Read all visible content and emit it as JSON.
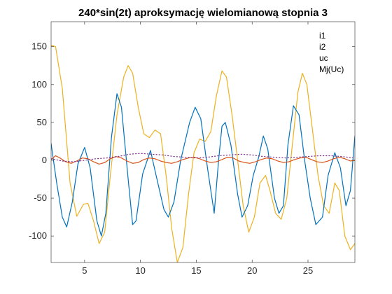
{
  "chart_data": {
    "type": "line",
    "title": "240*sin(2t) aproksymację wielomianową stopnia 3",
    "xlabel": "",
    "ylabel": "",
    "xlim": [
      2,
      29.2
    ],
    "ylim": [
      -135,
      183
    ],
    "xticks": [
      5,
      10,
      15,
      20,
      25
    ],
    "xtick_labels": [
      "5",
      "10",
      "15",
      "20",
      "25"
    ],
    "yticks": [
      -100,
      -50,
      0,
      50,
      100,
      150
    ],
    "ytick_labels": [
      "-100",
      "-50",
      "0",
      "50",
      "100",
      "150"
    ],
    "grid": false,
    "legend": {
      "placement": "top-right",
      "boxed": false
    },
    "series": [
      {
        "name": "i1",
        "color": "#EDB120",
        "style": "solid",
        "points": [
          [
            2.0,
            152
          ],
          [
            2.4,
            150
          ],
          [
            3.0,
            95
          ],
          [
            3.7,
            -30
          ],
          [
            4.3,
            -74
          ],
          [
            4.9,
            -58
          ],
          [
            5.3,
            -57
          ],
          [
            5.8,
            -80
          ],
          [
            6.3,
            -110
          ],
          [
            6.8,
            -95
          ],
          [
            7.3,
            -20
          ],
          [
            7.9,
            60
          ],
          [
            8.5,
            110
          ],
          [
            8.9,
            125
          ],
          [
            9.3,
            115
          ],
          [
            9.8,
            70
          ],
          [
            10.3,
            35
          ],
          [
            10.8,
            30
          ],
          [
            11.3,
            40
          ],
          [
            11.8,
            35
          ],
          [
            12.3,
            -20
          ],
          [
            12.8,
            -90
          ],
          [
            13.3,
            -135
          ],
          [
            13.8,
            -115
          ],
          [
            14.3,
            -45
          ],
          [
            14.8,
            10
          ],
          [
            15.3,
            28
          ],
          [
            15.8,
            25
          ],
          [
            16.3,
            38
          ],
          [
            16.8,
            85
          ],
          [
            17.3,
            118
          ],
          [
            17.7,
            110
          ],
          [
            18.2,
            60
          ],
          [
            18.7,
            0
          ],
          [
            19.2,
            -60
          ],
          [
            19.7,
            -95
          ],
          [
            20.2,
            -75
          ],
          [
            20.7,
            -30
          ],
          [
            21.2,
            -20
          ],
          [
            21.6,
            -40
          ],
          [
            22.1,
            -70
          ],
          [
            22.6,
            -78
          ],
          [
            23.1,
            -50
          ],
          [
            23.6,
            20
          ],
          [
            24.1,
            90
          ],
          [
            24.5,
            115
          ],
          [
            24.9,
            100
          ],
          [
            25.4,
            40
          ],
          [
            25.9,
            -20
          ],
          [
            26.4,
            -60
          ],
          [
            26.9,
            -70
          ],
          [
            27.4,
            -30
          ],
          [
            27.8,
            -40
          ],
          [
            28.3,
            -100
          ],
          [
            28.8,
            -118
          ],
          [
            29.2,
            -110
          ]
        ]
      },
      {
        "name": "i2",
        "color": "#0072BD",
        "style": "solid",
        "points": [
          [
            2.0,
            22
          ],
          [
            2.5,
            -30
          ],
          [
            3.0,
            -75
          ],
          [
            3.4,
            -88
          ],
          [
            3.9,
            -55
          ],
          [
            4.4,
            -5
          ],
          [
            5.0,
            17
          ],
          [
            5.5,
            -10
          ],
          [
            6.1,
            -80
          ],
          [
            6.5,
            -100
          ],
          [
            6.9,
            -70
          ],
          [
            7.4,
            30
          ],
          [
            7.9,
            88
          ],
          [
            8.3,
            70
          ],
          [
            8.9,
            -25
          ],
          [
            9.3,
            -85
          ],
          [
            9.6,
            -80
          ],
          [
            10.2,
            -18
          ],
          [
            10.9,
            13
          ],
          [
            11.4,
            -20
          ],
          [
            12.1,
            -65
          ],
          [
            12.5,
            -75
          ],
          [
            13.0,
            -55
          ],
          [
            13.6,
            0
          ],
          [
            14.4,
            50
          ],
          [
            14.9,
            70
          ],
          [
            15.4,
            55
          ],
          [
            16.0,
            -10
          ],
          [
            16.6,
            -70
          ],
          [
            17.0,
            0
          ],
          [
            17.3,
            45
          ],
          [
            17.6,
            50
          ],
          [
            18.1,
            20
          ],
          [
            18.7,
            -45
          ],
          [
            19.1,
            -75
          ],
          [
            19.6,
            -60
          ],
          [
            20.1,
            -20
          ],
          [
            20.6,
            5
          ],
          [
            21.0,
            32
          ],
          [
            21.4,
            15
          ],
          [
            22.0,
            -50
          ],
          [
            22.4,
            -70
          ],
          [
            22.8,
            -60
          ],
          [
            23.2,
            20
          ],
          [
            23.7,
            72
          ],
          [
            24.2,
            60
          ],
          [
            24.7,
            0
          ],
          [
            25.2,
            -50
          ],
          [
            25.7,
            -85
          ],
          [
            26.3,
            -75
          ],
          [
            26.8,
            -20
          ],
          [
            27.4,
            10
          ],
          [
            27.9,
            -10
          ],
          [
            28.4,
            -60
          ],
          [
            28.8,
            -40
          ],
          [
            29.2,
            32
          ]
        ]
      },
      {
        "name": "uc",
        "color": "#D95319",
        "style": "solid",
        "points": [
          [
            2.0,
            1
          ],
          [
            2.4,
            6
          ],
          [
            2.8,
            3
          ],
          [
            3.3,
            -2
          ],
          [
            3.8,
            -4
          ],
          [
            4.3,
            -1
          ],
          [
            4.8,
            3
          ],
          [
            5.3,
            2
          ],
          [
            5.8,
            -2
          ],
          [
            6.3,
            -5
          ],
          [
            6.8,
            -3
          ],
          [
            7.3,
            2
          ],
          [
            7.8,
            5
          ],
          [
            8.3,
            3
          ],
          [
            8.8,
            -1
          ],
          [
            9.3,
            -4
          ],
          [
            9.8,
            -3
          ],
          [
            10.3,
            1
          ],
          [
            10.8,
            3
          ],
          [
            11.3,
            2
          ],
          [
            11.8,
            -1
          ],
          [
            12.3,
            -3
          ],
          [
            12.8,
            -4
          ],
          [
            13.3,
            -2
          ],
          [
            13.8,
            1
          ],
          [
            14.3,
            3
          ],
          [
            14.8,
            4
          ],
          [
            15.3,
            2
          ],
          [
            15.8,
            -1
          ],
          [
            16.3,
            -3
          ],
          [
            16.8,
            -2
          ],
          [
            17.3,
            1
          ],
          [
            17.8,
            4
          ],
          [
            18.3,
            3
          ],
          [
            18.8,
            -1
          ],
          [
            19.3,
            -3
          ],
          [
            19.8,
            -4
          ],
          [
            20.3,
            -2
          ],
          [
            20.8,
            1
          ],
          [
            21.3,
            3
          ],
          [
            21.8,
            2
          ],
          [
            22.3,
            -1
          ],
          [
            22.8,
            -3
          ],
          [
            23.3,
            -2
          ],
          [
            23.8,
            1
          ],
          [
            24.3,
            3
          ],
          [
            24.8,
            4
          ],
          [
            25.3,
            1
          ],
          [
            25.8,
            -2
          ],
          [
            26.3,
            -3
          ],
          [
            26.8,
            -1
          ],
          [
            27.3,
            2
          ],
          [
            27.8,
            4
          ],
          [
            28.3,
            2
          ],
          [
            28.8,
            -1
          ],
          [
            29.2,
            0
          ]
        ]
      },
      {
        "name": "Mj(Uc)",
        "color": "#7E2F8E",
        "style": "dotted",
        "points": [
          [
            2.0,
            2
          ],
          [
            3.0,
            -1
          ],
          [
            4.0,
            -2
          ],
          [
            5.0,
            0
          ],
          [
            6.0,
            2
          ],
          [
            7.0,
            3
          ],
          [
            8.0,
            5
          ],
          [
            9.0,
            8
          ],
          [
            10.0,
            9
          ],
          [
            11.0,
            8
          ],
          [
            12.0,
            7
          ],
          [
            13.0,
            5
          ],
          [
            14.0,
            4
          ],
          [
            15.0,
            3
          ],
          [
            16.0,
            4
          ],
          [
            17.0,
            6
          ],
          [
            18.0,
            7
          ],
          [
            19.0,
            8
          ],
          [
            20.0,
            7
          ],
          [
            21.0,
            5
          ],
          [
            22.0,
            4
          ],
          [
            23.0,
            3
          ],
          [
            24.0,
            4
          ],
          [
            25.0,
            5
          ],
          [
            26.0,
            6
          ],
          [
            27.0,
            6
          ],
          [
            28.0,
            5
          ],
          [
            29.2,
            3
          ]
        ]
      }
    ]
  }
}
